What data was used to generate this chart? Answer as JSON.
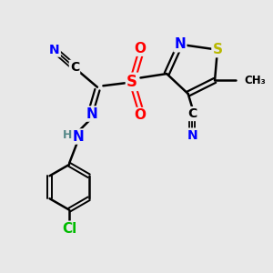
{
  "bg_color": "#e8e8e8",
  "bond_color": "#000000",
  "atom_colors": {
    "N": "#0000ff",
    "S_ring": "#b8b800",
    "S_sulfonyl": "#ff0000",
    "O": "#ff0000",
    "Cl": "#00bb00",
    "C": "#000000",
    "H": "#558888"
  },
  "figsize": [
    3.0,
    3.0
  ],
  "dpi": 100,
  "xlim": [
    0,
    10
  ],
  "ylim": [
    0,
    10
  ]
}
